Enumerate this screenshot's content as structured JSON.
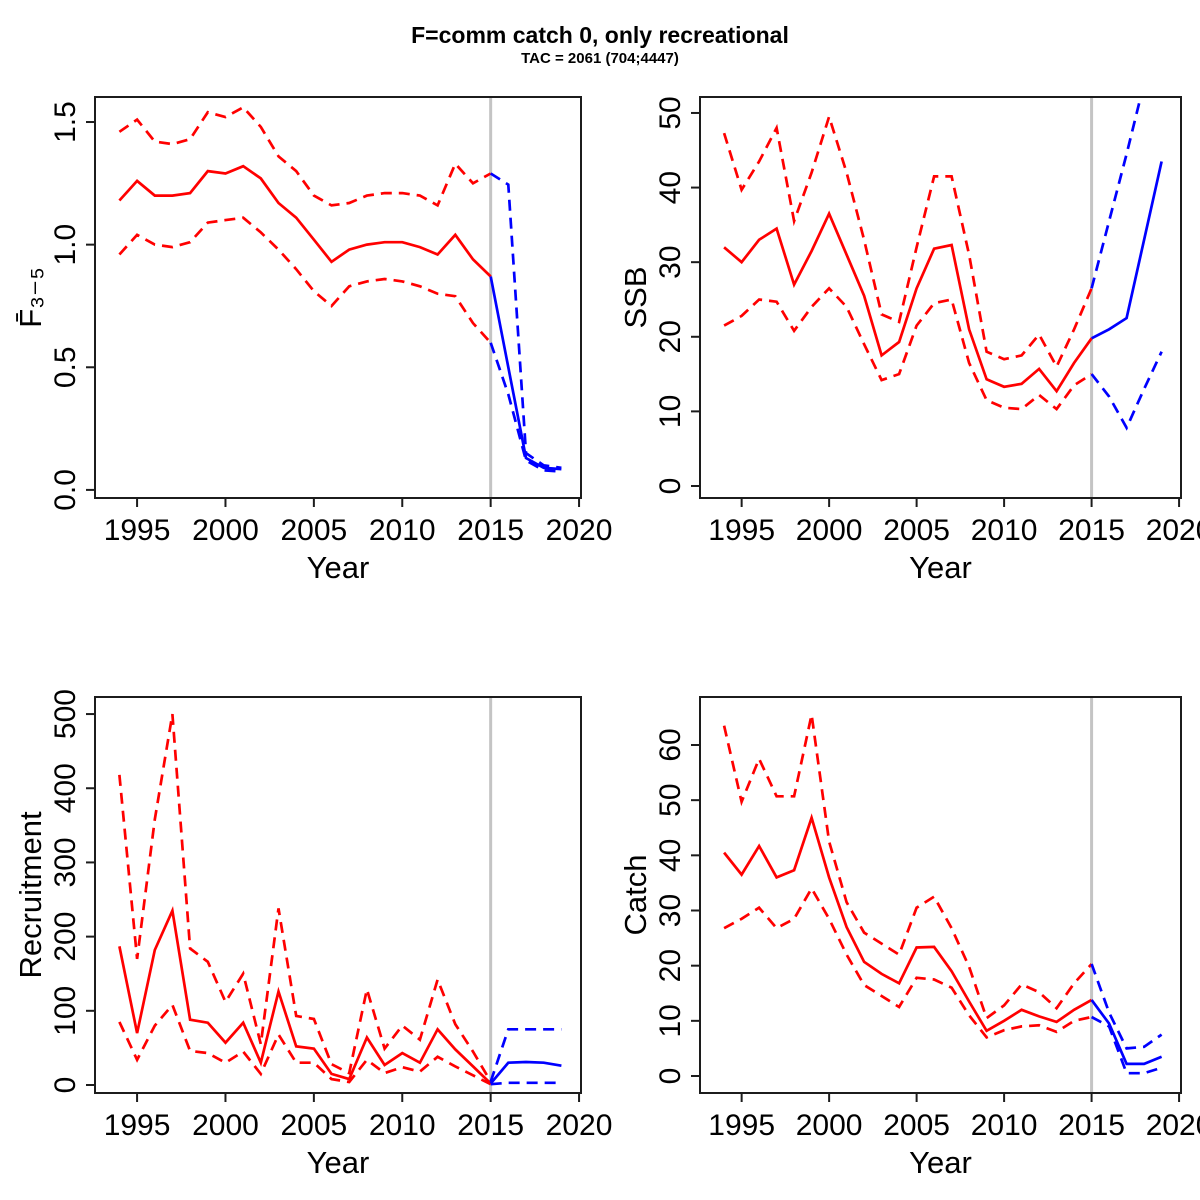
{
  "title": "F=comm catch 0, only recreational",
  "subtitle": "TAC = 2061 (704;4447)",
  "colors": {
    "historic": "#ff0000",
    "forecast": "#0000ff",
    "divider": "#c4c4c4",
    "frame": "#1c1c1c",
    "text": "#000000"
  },
  "chart_data": [
    {
      "type": "line",
      "key": "fbar",
      "ylabel": "F̄₃₋₅",
      "xlabel": "Year",
      "xlim": [
        1992.62,
        2020.11
      ],
      "ylim": [
        -0.033,
        1.602
      ],
      "divider_x": 2015,
      "grid": false,
      "xticks": {
        "values": [
          1995,
          2000,
          2005,
          2010,
          2015,
          2020
        ],
        "labels": [
          "1995",
          "2000",
          "2005",
          "2010",
          "2015",
          "2020"
        ]
      },
      "yticks": {
        "values": [
          0,
          0.5,
          1,
          1.5
        ],
        "labels": [
          "0.0",
          "0.5",
          "1.0",
          "1.5"
        ]
      },
      "series": [
        {
          "name": "historic-upper95",
          "color": "#ff0000",
          "dashed": true,
          "x": [
            1994,
            1995,
            1996,
            1997,
            1998,
            1999,
            2000,
            2001,
            2002,
            2003,
            2004,
            2005,
            2006,
            2007,
            2008,
            2009,
            2010,
            2011,
            2012,
            2013,
            2014,
            2015
          ],
          "y": [
            1.46,
            1.51,
            1.42,
            1.41,
            1.43,
            1.54,
            1.52,
            1.56,
            1.48,
            1.36,
            1.3,
            1.2,
            1.16,
            1.17,
            1.2,
            1.21,
            1.21,
            1.2,
            1.16,
            1.33,
            1.25,
            1.29
          ]
        },
        {
          "name": "historic-median",
          "color": "#ff0000",
          "dashed": false,
          "x": [
            1994,
            1995,
            1996,
            1997,
            1998,
            1999,
            2000,
            2001,
            2002,
            2003,
            2004,
            2005,
            2006,
            2007,
            2008,
            2009,
            2010,
            2011,
            2012,
            2013,
            2014,
            2015
          ],
          "y": [
            1.18,
            1.26,
            1.2,
            1.2,
            1.21,
            1.3,
            1.29,
            1.32,
            1.27,
            1.17,
            1.11,
            1.02,
            0.93,
            0.98,
            1.0,
            1.01,
            1.01,
            0.99,
            0.96,
            1.04,
            0.94,
            0.87
          ]
        },
        {
          "name": "historic-lower95",
          "color": "#ff0000",
          "dashed": true,
          "x": [
            1994,
            1995,
            1996,
            1997,
            1998,
            1999,
            2000,
            2001,
            2002,
            2003,
            2004,
            2005,
            2006,
            2007,
            2008,
            2009,
            2010,
            2011,
            2012,
            2013,
            2014,
            2015
          ],
          "y": [
            0.96,
            1.04,
            1.0,
            0.99,
            1.01,
            1.09,
            1.1,
            1.11,
            1.05,
            0.98,
            0.9,
            0.81,
            0.75,
            0.83,
            0.85,
            0.86,
            0.85,
            0.83,
            0.8,
            0.79,
            0.68,
            0.6
          ]
        },
        {
          "name": "forecast-upper95",
          "color": "#0000ff",
          "dashed": true,
          "x": [
            2015,
            2016,
            2017,
            2018,
            2019
          ],
          "y": [
            1.29,
            1.245,
            0.15,
            0.1,
            0.09
          ]
        },
        {
          "name": "forecast-median",
          "color": "#0000ff",
          "dashed": false,
          "x": [
            2015,
            2016,
            2017,
            2018,
            2019
          ],
          "y": [
            0.87,
            0.5,
            0.13,
            0.09,
            0.085
          ]
        },
        {
          "name": "forecast-lower95",
          "color": "#0000ff",
          "dashed": true,
          "x": [
            2015,
            2016,
            2017,
            2018,
            2019
          ],
          "y": [
            0.6,
            0.39,
            0.12,
            0.08,
            0.075
          ]
        }
      ]
    },
    {
      "type": "line",
      "key": "ssb",
      "ylabel": "SSB",
      "xlabel": "Year",
      "xlim": [
        1992.62,
        2020.11
      ],
      "ylim": [
        -1.61,
        52.14
      ],
      "divider_x": 2015,
      "grid": false,
      "xticks": {
        "values": [
          1995,
          2000,
          2005,
          2010,
          2015,
          2020
        ],
        "labels": [
          "1995",
          "2000",
          "2005",
          "2010",
          "2015",
          "2020"
        ]
      },
      "yticks": {
        "values": [
          0,
          10,
          20,
          30,
          40,
          50
        ],
        "labels": [
          "0",
          "10",
          "20",
          "30",
          "40",
          "50"
        ]
      },
      "series": [
        {
          "name": "historic-upper95",
          "color": "#ff0000",
          "dashed": true,
          "x": [
            1994,
            1995,
            1996,
            1997,
            1998,
            1999,
            2000,
            2001,
            2002,
            2003,
            2004,
            2005,
            2006,
            2007,
            2008,
            2009,
            2010,
            2011,
            2012,
            2013,
            2014,
            2015
          ],
          "y": [
            47.3,
            39.7,
            43.5,
            48,
            35.5,
            42,
            49.5,
            42,
            33,
            23,
            22,
            32,
            41.5,
            41.5,
            31,
            18,
            17,
            17.5,
            20.3,
            16,
            21,
            26.5
          ]
        },
        {
          "name": "historic-median",
          "color": "#ff0000",
          "dashed": false,
          "x": [
            1994,
            1995,
            1996,
            1997,
            1998,
            1999,
            2000,
            2001,
            2002,
            2003,
            2004,
            2005,
            2006,
            2007,
            2008,
            2009,
            2010,
            2011,
            2012,
            2013,
            2014,
            2015
          ],
          "y": [
            32,
            30,
            33,
            34.5,
            27,
            31.5,
            36.5,
            31,
            25.5,
            17.5,
            19.3,
            26.5,
            31.8,
            32.3,
            21,
            14.3,
            13.3,
            13.7,
            15.7,
            12.7,
            16.5,
            19.8
          ]
        },
        {
          "name": "historic-lower95",
          "color": "#ff0000",
          "dashed": true,
          "x": [
            1994,
            1995,
            1996,
            1997,
            1998,
            1999,
            2000,
            2001,
            2002,
            2003,
            2004,
            2005,
            2006,
            2007,
            2008,
            2009,
            2010,
            2011,
            2012,
            2013,
            2014,
            2015
          ],
          "y": [
            21.5,
            22.8,
            25,
            24.7,
            20.8,
            24,
            26.5,
            24,
            19,
            14.2,
            15,
            21.5,
            24.5,
            25,
            16.5,
            11.5,
            10.5,
            10.3,
            12.2,
            10.3,
            13.5,
            15
          ]
        },
        {
          "name": "forecast-upper95",
          "color": "#0000ff",
          "dashed": true,
          "x": [
            2015,
            2016,
            2017,
            2018,
            2019
          ],
          "y": [
            26.5,
            35.5,
            44.5,
            54,
            64
          ]
        },
        {
          "name": "forecast-median",
          "color": "#0000ff",
          "dashed": false,
          "x": [
            2015,
            2016,
            2017,
            2018,
            2019
          ],
          "y": [
            19.8,
            21,
            22.5,
            33,
            43.5
          ]
        },
        {
          "name": "forecast-lower95",
          "color": "#0000ff",
          "dashed": true,
          "x": [
            2015,
            2016,
            2017,
            2018,
            2019
          ],
          "y": [
            15,
            12,
            7.8,
            13,
            18
          ]
        }
      ]
    },
    {
      "type": "line",
      "key": "recruitment",
      "ylabel": "Recruitment",
      "xlabel": "Year",
      "xlim": [
        1992.62,
        2020.11
      ],
      "ylim": [
        -10.8,
        523
      ],
      "divider_x": 2015,
      "grid": false,
      "xticks": {
        "values": [
          1995,
          2000,
          2005,
          2010,
          2015,
          2020
        ],
        "labels": [
          "1995",
          "2000",
          "2005",
          "2010",
          "2015",
          "2020"
        ]
      },
      "yticks": {
        "values": [
          0,
          100,
          200,
          300,
          400,
          500
        ],
        "labels": [
          "0",
          "100",
          "200",
          "300",
          "400",
          "500"
        ]
      },
      "series": [
        {
          "name": "historic-upper95",
          "color": "#ff0000",
          "dashed": true,
          "x": [
            1994,
            1995,
            1996,
            1997,
            1998,
            1999,
            2000,
            2001,
            2002,
            2003,
            2004,
            2005,
            2006,
            2007,
            2008,
            2009,
            2010,
            2011,
            2012,
            2013,
            2014,
            2015
          ],
          "y": [
            418,
            170,
            358,
            500,
            184,
            166,
            112,
            150,
            55,
            238,
            93,
            89,
            28,
            16,
            129,
            49,
            80,
            61,
            142,
            82,
            45,
            4.5
          ]
        },
        {
          "name": "historic-median",
          "color": "#ff0000",
          "dashed": false,
          "x": [
            1994,
            1995,
            1996,
            1997,
            1998,
            1999,
            2000,
            2001,
            2002,
            2003,
            2004,
            2005,
            2006,
            2007,
            2008,
            2009,
            2010,
            2011,
            2012,
            2013,
            2014,
            2015
          ],
          "y": [
            187,
            70,
            182,
            235,
            88,
            84,
            57,
            84,
            30,
            126,
            52,
            49,
            15,
            8,
            64,
            27,
            43,
            30,
            75,
            48,
            25,
            2
          ]
        },
        {
          "name": "historic-lower95",
          "color": "#ff0000",
          "dashed": true,
          "x": [
            1994,
            1995,
            1996,
            1997,
            1998,
            1999,
            2000,
            2001,
            2002,
            2003,
            2004,
            2005,
            2006,
            2007,
            2008,
            2009,
            2010,
            2011,
            2012,
            2013,
            2014,
            2015
          ],
          "y": [
            85,
            34,
            80,
            108,
            46,
            43,
            30,
            45,
            15,
            68,
            30,
            30,
            8,
            4,
            34,
            16,
            24,
            18,
            38,
            25,
            13,
            1
          ]
        },
        {
          "name": "forecast-upper95",
          "color": "#0000ff",
          "dashed": true,
          "x": [
            2015,
            2016,
            2017,
            2018,
            2019
          ],
          "y": [
            4.5,
            75,
            75,
            75,
            75
          ]
        },
        {
          "name": "forecast-median",
          "color": "#0000ff",
          "dashed": false,
          "x": [
            2015,
            2016,
            2017,
            2018,
            2019
          ],
          "y": [
            2,
            30,
            31,
            30,
            26
          ]
        },
        {
          "name": "forecast-lower95",
          "color": "#0000ff",
          "dashed": true,
          "x": [
            2015,
            2016,
            2017,
            2018,
            2019
          ],
          "y": [
            1,
            3,
            3,
            3,
            3
          ]
        }
      ]
    },
    {
      "type": "line",
      "key": "catch",
      "ylabel": "Catch",
      "xlabel": "Year",
      "xlim": [
        1992.62,
        2020.11
      ],
      "ylim": [
        -3.08,
        68.7
      ],
      "divider_x": 2015,
      "grid": false,
      "xticks": {
        "values": [
          1995,
          2000,
          2005,
          2010,
          2015,
          2020
        ],
        "labels": [
          "1995",
          "2000",
          "2005",
          "2010",
          "2015",
          "2020"
        ]
      },
      "yticks": {
        "values": [
          0,
          10,
          20,
          30,
          40,
          50,
          60
        ],
        "labels": [
          "0",
          "10",
          "20",
          "30",
          "40",
          "50",
          "60"
        ]
      },
      "series": [
        {
          "name": "historic-upper95",
          "color": "#ff0000",
          "dashed": true,
          "x": [
            1994,
            1995,
            1996,
            1997,
            1998,
            1999,
            2000,
            2001,
            2002,
            2003,
            2004,
            2005,
            2006,
            2007,
            2008,
            2009,
            2010,
            2011,
            2012,
            2013,
            2014,
            2015
          ],
          "y": [
            63.5,
            49.7,
            57.5,
            50.7,
            50.7,
            65.5,
            42.5,
            31.5,
            26,
            24,
            22,
            30.5,
            32.5,
            26.8,
            19.8,
            10.5,
            12.8,
            16.6,
            15.2,
            12.3,
            16.8,
            20.3
          ]
        },
        {
          "name": "historic-median",
          "color": "#ff0000",
          "dashed": false,
          "x": [
            1994,
            1995,
            1996,
            1997,
            1998,
            1999,
            2000,
            2001,
            2002,
            2003,
            2004,
            2005,
            2006,
            2007,
            2008,
            2009,
            2010,
            2011,
            2012,
            2013,
            2014,
            2015
          ],
          "y": [
            40.5,
            36.5,
            41.7,
            36,
            37.3,
            46.8,
            36,
            27,
            20.7,
            18.5,
            16.8,
            23.3,
            23.4,
            19,
            13.5,
            8.2,
            10,
            12,
            10.8,
            9.8,
            12,
            13.8
          ]
        },
        {
          "name": "historic-lower95",
          "color": "#ff0000",
          "dashed": true,
          "x": [
            1994,
            1995,
            1996,
            1997,
            1998,
            1999,
            2000,
            2001,
            2002,
            2003,
            2004,
            2005,
            2006,
            2007,
            2008,
            2009,
            2010,
            2011,
            2012,
            2013,
            2014,
            2015
          ],
          "y": [
            26.8,
            28.5,
            30.5,
            26.8,
            28.5,
            34,
            28.5,
            22,
            16.5,
            14.5,
            12.5,
            17.8,
            17.5,
            16,
            11,
            7,
            8.3,
            9,
            9.2,
            8,
            10,
            10.7
          ]
        },
        {
          "name": "forecast-upper95",
          "color": "#0000ff",
          "dashed": true,
          "x": [
            2015,
            2016,
            2017,
            2018,
            2019
          ],
          "y": [
            20.3,
            11.5,
            5,
            5.3,
            7.5
          ]
        },
        {
          "name": "forecast-median",
          "color": "#0000ff",
          "dashed": false,
          "x": [
            2015,
            2016,
            2017,
            2018,
            2019
          ],
          "y": [
            13.8,
            9.5,
            2.2,
            2.2,
            3.5
          ]
        },
        {
          "name": "forecast-lower95",
          "color": "#0000ff",
          "dashed": true,
          "x": [
            2015,
            2016,
            2017,
            2018,
            2019
          ],
          "y": [
            10.7,
            9,
            0.5,
            0.5,
            1.5
          ]
        }
      ]
    }
  ]
}
